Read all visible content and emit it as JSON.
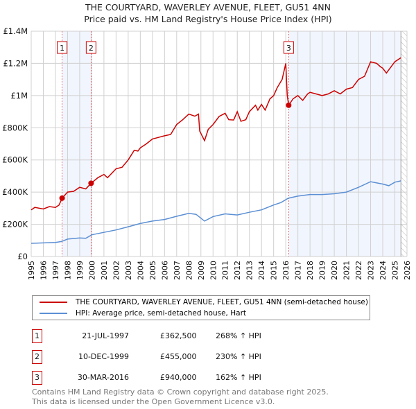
{
  "chart_data": {
    "type": "line",
    "title": "THE COURTYARD, WAVERLEY AVENUE, FLEET, GU51 4NN",
    "subtitle": "Price paid vs. HM Land Registry's House Price Index (HPI)",
    "xlim": [
      1995,
      2026
    ],
    "ylim": [
      0,
      1400000
    ],
    "x_ticks": [
      "1995",
      "1996",
      "1997",
      "1998",
      "1999",
      "2000",
      "2001",
      "2002",
      "2003",
      "2004",
      "2005",
      "2006",
      "2007",
      "2008",
      "2009",
      "2010",
      "2011",
      "2012",
      "2013",
      "2014",
      "2015",
      "2016",
      "2017",
      "2018",
      "2019",
      "2020",
      "2021",
      "2022",
      "2023",
      "2024",
      "2025",
      "2026"
    ],
    "y_ticks": [
      {
        "v": 0,
        "label": "£0"
      },
      {
        "v": 200000,
        "label": "£200K"
      },
      {
        "v": 400000,
        "label": "£400K"
      },
      {
        "v": 600000,
        "label": "£600K"
      },
      {
        "v": 800000,
        "label": "£800K"
      },
      {
        "v": 1000000,
        "label": "£1M"
      },
      {
        "v": 1200000,
        "label": "£1.2M"
      },
      {
        "v": 1400000,
        "label": "£1.4M"
      }
    ],
    "grid": true,
    "shaded_ranges": [
      [
        1997.55,
        1999.94
      ],
      [
        2016.24,
        2025.5
      ]
    ],
    "forecast_hatch_from": 2025.5,
    "series": [
      {
        "name": "THE COURTYARD, WAVERLEY AVENUE, FLEET, GU51 4NN (semi-detached house)",
        "color": "#cc0000",
        "points": [
          [
            1995,
            290
          ],
          [
            1995.3,
            305
          ],
          [
            1996,
            295
          ],
          [
            1996.5,
            310
          ],
          [
            1997,
            305
          ],
          [
            1997.3,
            320
          ],
          [
            1997.55,
            362.5
          ],
          [
            1998,
            400
          ],
          [
            1998.5,
            405
          ],
          [
            1999,
            430
          ],
          [
            1999.5,
            420
          ],
          [
            1999.94,
            455
          ],
          [
            2000.5,
            490
          ],
          [
            2001,
            510
          ],
          [
            2001.3,
            490
          ],
          [
            2002,
            545
          ],
          [
            2002.5,
            555
          ],
          [
            2003,
            600
          ],
          [
            2003.5,
            660
          ],
          [
            2003.8,
            655
          ],
          [
            2004,
            675
          ],
          [
            2004.5,
            700
          ],
          [
            2005,
            730
          ],
          [
            2005.5,
            740
          ],
          [
            2006,
            750
          ],
          [
            2006.5,
            758
          ],
          [
            2007,
            820
          ],
          [
            2007.5,
            850
          ],
          [
            2008,
            885
          ],
          [
            2008.5,
            872
          ],
          [
            2008.8,
            885
          ],
          [
            2008.9,
            780
          ],
          [
            2009.3,
            720
          ],
          [
            2009.6,
            790
          ],
          [
            2010,
            820
          ],
          [
            2010.5,
            870
          ],
          [
            2011,
            890
          ],
          [
            2011.3,
            850
          ],
          [
            2011.7,
            848
          ],
          [
            2012,
            900
          ],
          [
            2012.3,
            840
          ],
          [
            2012.7,
            850
          ],
          [
            2013,
            900
          ],
          [
            2013.5,
            940
          ],
          [
            2013.7,
            910
          ],
          [
            2014,
            945
          ],
          [
            2014.3,
            910
          ],
          [
            2014.7,
            980
          ],
          [
            2015,
            1000
          ],
          [
            2015.3,
            1050
          ],
          [
            2015.7,
            1100
          ],
          [
            2016,
            1200
          ],
          [
            2016.12,
            1000
          ],
          [
            2016.24,
            940
          ],
          [
            2016.6,
            980
          ],
          [
            2017,
            1000
          ],
          [
            2017.4,
            970
          ],
          [
            2017.8,
            1010
          ],
          [
            2018,
            1020
          ],
          [
            2018.5,
            1010
          ],
          [
            2019,
            1000
          ],
          [
            2019.5,
            1010
          ],
          [
            2020,
            1030
          ],
          [
            2020.5,
            1010
          ],
          [
            2021,
            1040
          ],
          [
            2021.5,
            1050
          ],
          [
            2022,
            1100
          ],
          [
            2022.5,
            1120
          ],
          [
            2023,
            1210
          ],
          [
            2023.5,
            1200
          ],
          [
            2023.8,
            1180
          ],
          [
            2024,
            1170
          ],
          [
            2024.3,
            1140
          ],
          [
            2024.5,
            1160
          ],
          [
            2025,
            1210
          ],
          [
            2025.5,
            1235
          ]
        ]
      },
      {
        "name": "HPI: Average price, semi-detached house, Hart",
        "color": "#5b8fd4",
        "points": [
          [
            1995,
            82
          ],
          [
            1997,
            87
          ],
          [
            1997.5,
            93
          ],
          [
            1998,
            108
          ],
          [
            1999,
            115
          ],
          [
            1999.5,
            113
          ],
          [
            2000,
            135
          ],
          [
            2001,
            150
          ],
          [
            2002,
            165
          ],
          [
            2003,
            185
          ],
          [
            2004,
            205
          ],
          [
            2005,
            220
          ],
          [
            2006,
            230
          ],
          [
            2007,
            250
          ],
          [
            2008,
            268
          ],
          [
            2008.6,
            262
          ],
          [
            2009.3,
            220
          ],
          [
            2010,
            248
          ],
          [
            2011,
            265
          ],
          [
            2012,
            258
          ],
          [
            2013,
            275
          ],
          [
            2014,
            290
          ],
          [
            2015,
            320
          ],
          [
            2015.6,
            335
          ],
          [
            2016.2,
            362
          ],
          [
            2017,
            375
          ],
          [
            2018,
            385
          ],
          [
            2019,
            385
          ],
          [
            2020,
            390
          ],
          [
            2021,
            400
          ],
          [
            2022,
            430
          ],
          [
            2023,
            465
          ],
          [
            2024,
            450
          ],
          [
            2024.5,
            440
          ],
          [
            2025,
            462
          ],
          [
            2025.5,
            470
          ]
        ]
      }
    ],
    "sales": [
      {
        "n": "1",
        "x": 1997.55,
        "value": 362.5
      },
      {
        "n": "2",
        "x": 1999.94,
        "value": 455
      },
      {
        "n": "3",
        "x": 2016.24,
        "value": 940
      }
    ],
    "value_units": "£K"
  },
  "legend": {
    "red": "THE COURTYARD, WAVERLEY AVENUE, FLEET, GU51 4NN (semi-detached house)",
    "blue": "HPI: Average price, semi-detached house, Hart"
  },
  "table": [
    {
      "n": "1",
      "date": "21-JUL-1997",
      "price": "£362,500",
      "hpi": "268% ↑ HPI"
    },
    {
      "n": "2",
      "date": "10-DEC-1999",
      "price": "£455,000",
      "hpi": "230% ↑ HPI"
    },
    {
      "n": "3",
      "date": "30-MAR-2016",
      "price": "£940,000",
      "hpi": "162% ↑ HPI"
    }
  ],
  "footer": {
    "line1": "Contains HM Land Registry data © Crown copyright and database right 2025.",
    "line2": "This data is licensed under the Open Government Licence v3.0."
  }
}
